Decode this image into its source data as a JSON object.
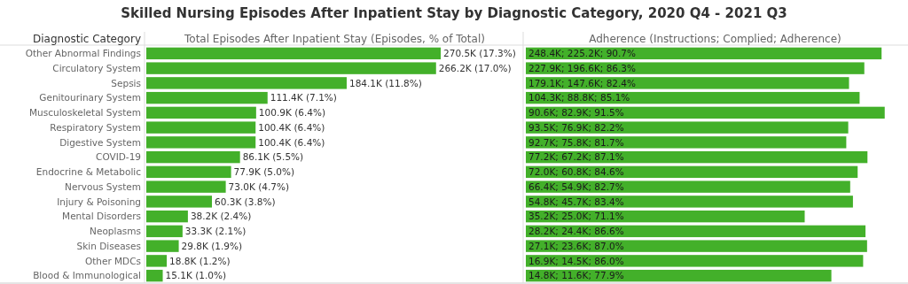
{
  "chart_data": [
    {
      "type": "bar",
      "orientation": "horizontal",
      "title": "Skilled Nursing Episodes After Inpatient Stay by Diagnostic Category, 2020 Q4 - 2021 Q3",
      "ylabel": "Diagnostic Category",
      "xlabel": "Total Episodes After Inpatient Stay (Episodes, % of Total)",
      "tick_labels": "y",
      "categories": [
        "Other Abnormal Findings",
        "Circulatory System",
        "Sepsis",
        "Genitourinary System",
        "Musculoskeletal System",
        "Respiratory System",
        "Digestive System",
        "COVID-19",
        "Endocrine & Metabolic",
        "Nervous System",
        "Injury & Poisoning",
        "Mental Disorders",
        "Neoplasms",
        "Skin Diseases",
        "Other MDCs",
        "Blood & Immunological"
      ],
      "series": [
        {
          "color": "#43b02a",
          "values": [
            270500,
            266200,
            184100,
            111400,
            100900,
            100400,
            100400,
            86100,
            77900,
            73000,
            60300,
            38200,
            33300,
            29800,
            18800,
            15100
          ],
          "value_labels": [
            "270.5K (17.3%)",
            "266.2K (17.0%)",
            "184.1K (11.8%)",
            "111.4K (7.1%)",
            "100.9K (6.4%)",
            "100.4K (6.4%)",
            "100.4K (6.4%)",
            "86.1K (5.5%)",
            "77.9K (5.0%)",
            "73.0K (4.7%)",
            "60.3K (3.8%)",
            "38.2K (2.4%)",
            "33.3K (2.1%)",
            "29.8K (1.9%)",
            "18.8K (1.2%)",
            "15.1K (1.0%)"
          ]
        }
      ]
    },
    {
      "type": "bar",
      "orientation": "horizontal",
      "xlabel": "Adherence (Instructions; Complied; Adherence)",
      "tick_labels": false,
      "categories": [
        null,
        null,
        null,
        null,
        null,
        null,
        null,
        null,
        null,
        null,
        null,
        null,
        null,
        null,
        null,
        null
      ],
      "series": [
        {
          "color": "#43b02a",
          "values": [
            90.7,
            86.3,
            82.4,
            85.1,
            91.5,
            82.2,
            81.7,
            87.1,
            84.6,
            82.7,
            83.4,
            71.1,
            86.6,
            87.0,
            86.0,
            77.9
          ],
          "value_labels": [
            "248.4K; 225.2K; 90.7%",
            "227.9K; 196.6K; 86.3%",
            "179.1K; 147.6K; 82.4%",
            "104.3K; 88.8K; 85.1%",
            "90.6K; 82.9K; 91.5%",
            "93.5K; 76.9K; 82.2%",
            "92.7K; 75.8K; 81.7%",
            "77.2K; 67.2K; 87.1%",
            "72.0K; 60.8K; 84.6%",
            "66.4K; 54.9K; 82.7%",
            "54.8K; 45.7K; 83.4%",
            "35.2K; 25.0K; 71.1%",
            "28.2K; 24.4K; 86.6%",
            "27.1K; 23.6K; 87.0%",
            "16.9K; 14.5K; 86.0%",
            "14.8K; 11.6K; 77.9%"
          ]
        }
      ]
    }
  ]
}
